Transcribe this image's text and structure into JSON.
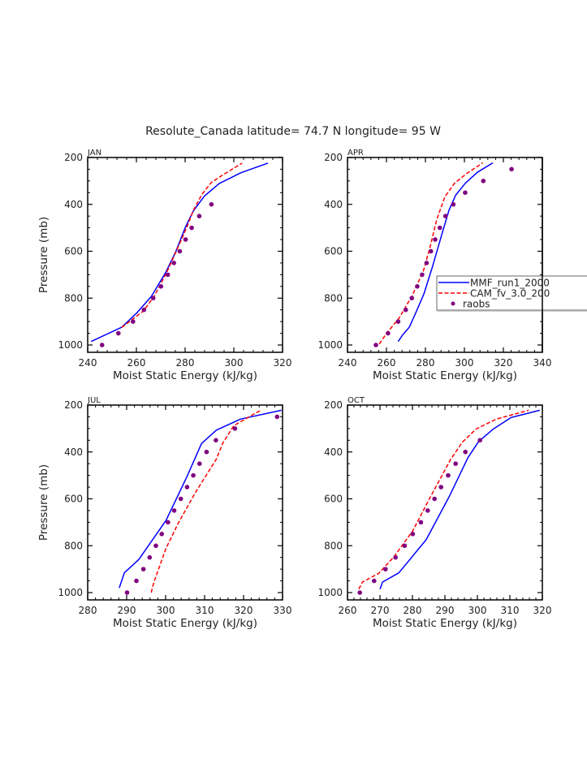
{
  "figure": {
    "title": "Resolute_Canada  latitude= 74.7 N longitude= 95 W"
  },
  "chart_data": {
    "type": "line",
    "title": "Resolute_Canada  latitude= 74.7 N longitude= 95 W",
    "xlabel": "Moist Static Energy (kJ/kg)",
    "ylabel": "Pressure (mb)",
    "y_axis_inverted": true,
    "legend": {
      "placement": "right-middle of APR panel (clipped at figure edge)",
      "entries": [
        {
          "label": "MMF_run1_2000",
          "style": "solid",
          "color": "#0000ff"
        },
        {
          "label": "CAM_fv_3.0_200",
          "style": "dashed",
          "color": "#ff0000"
        },
        {
          "label": "raobs",
          "style": "marker",
          "color": "#800080"
        }
      ]
    },
    "panels": [
      {
        "label": "JAN",
        "xlim": [
          240,
          320
        ],
        "ylim": [
          1000,
          200
        ],
        "xticks": [
          240,
          260,
          280,
          300,
          320
        ],
        "yticks": [
          200,
          400,
          600,
          800,
          1000
        ],
        "show_ylabel": true,
        "series": [
          {
            "name": "MMF_run1_2000",
            "style": "solid",
            "color": "#0000ff",
            "points": [
              [
                241.4,
                985
              ],
              [
                254,
                924
              ],
              [
                260.1,
                864
              ],
              [
                266.2,
                792
              ],
              [
                272,
                691
              ],
              [
                276.2,
                601
              ],
              [
                280.1,
                498
              ],
              [
                283.4,
                428
              ],
              [
                287.9,
                365
              ],
              [
                294,
                311
              ],
              [
                302.9,
                265
              ],
              [
                314,
                224
              ]
            ]
          },
          {
            "name": "CAM_fv_3.0_200",
            "style": "dashed",
            "color": "#ff0000",
            "points": [
              [
                254,
                925
              ],
              [
                262.9,
                855
              ],
              [
                267.3,
                792
              ],
              [
                272.3,
                694
              ],
              [
                276.8,
                590
              ],
              [
                280.7,
                498
              ],
              [
                283.3,
                428
              ],
              [
                286.8,
                359
              ],
              [
                290.7,
                307
              ],
              [
                295.7,
                273
              ],
              [
                303.4,
                224
              ]
            ]
          },
          {
            "name": "raobs",
            "style": "marker",
            "color": "#800080",
            "points": [
              [
                245.9,
                1000
              ],
              [
                252.6,
                950
              ],
              [
                258.6,
                900
              ],
              [
                263.1,
                850
              ],
              [
                266.9,
                800
              ],
              [
                270.1,
                750
              ],
              [
                272.9,
                700
              ],
              [
                275.4,
                650
              ],
              [
                277.8,
                600
              ],
              [
                280.2,
                550
              ],
              [
                282.7,
                500
              ],
              [
                285.8,
                450
              ],
              [
                290.8,
                400
              ]
            ]
          }
        ]
      },
      {
        "label": "APR",
        "xlim": [
          240,
          340
        ],
        "ylim": [
          1000,
          200
        ],
        "xticks": [
          240,
          260,
          280,
          300,
          320,
          340
        ],
        "yticks": [
          200,
          400,
          600,
          800,
          1000
        ],
        "show_ylabel": false,
        "series": [
          {
            "name": "MMF_run1_2000",
            "style": "solid",
            "color": "#0000ff",
            "points": [
              [
                266,
                985
              ],
              [
                268.5,
                955
              ],
              [
                271.7,
                924
              ],
              [
                274.7,
                869
              ],
              [
                279.2,
                782
              ],
              [
                283.8,
                661
              ],
              [
                288.6,
                523
              ],
              [
                292.1,
                425
              ],
              [
                295.5,
                361
              ],
              [
                300.4,
                310
              ],
              [
                306.7,
                263
              ],
              [
                314.6,
                223
              ]
            ]
          },
          {
            "name": "CAM_fv_3.0_200",
            "style": "dashed",
            "color": "#ff0000",
            "points": [
              [
                256.3,
                996
              ],
              [
                260.1,
                950
              ],
              [
                266.4,
                886
              ],
              [
                273.3,
                788
              ],
              [
                278.9,
                685
              ],
              [
                282.4,
                581
              ],
              [
                285.8,
                465
              ],
              [
                290,
                367
              ],
              [
                294.9,
                310
              ],
              [
                301.1,
                269
              ],
              [
                309.4,
                223
              ]
            ]
          },
          {
            "name": "raobs",
            "style": "marker",
            "color": "#800080",
            "points": [
              [
                254.6,
                1000
              ],
              [
                260.8,
                950
              ],
              [
                266,
                900
              ],
              [
                269.9,
                850
              ],
              [
                273,
                800
              ],
              [
                275.8,
                750
              ],
              [
                278.3,
                700
              ],
              [
                280.6,
                650
              ],
              [
                282.8,
                600
              ],
              [
                285,
                550
              ],
              [
                287.4,
                500
              ],
              [
                290.3,
                450
              ],
              [
                294.3,
                400
              ],
              [
                300.4,
                350
              ],
              [
                309.7,
                300
              ],
              [
                324.2,
                250
              ]
            ]
          }
        ]
      },
      {
        "label": "JUL",
        "xlim": [
          280,
          330
        ],
        "ylim": [
          1000,
          200
        ],
        "xticks": [
          280,
          290,
          300,
          310,
          320,
          330
        ],
        "yticks": [
          200,
          400,
          600,
          800,
          1000
        ],
        "show_ylabel": true,
        "series": [
          {
            "name": "MMF_run1_2000",
            "style": "solid",
            "color": "#0000ff",
            "points": [
              [
                288.1,
                980
              ],
              [
                289.4,
                916
              ],
              [
                293.1,
                859
              ],
              [
                300.1,
                692
              ],
              [
                305.4,
                508
              ],
              [
                309.2,
                364
              ],
              [
                313,
                307
              ],
              [
                319.2,
                260
              ],
              [
                329.7,
                222
              ]
            ]
          },
          {
            "name": "CAM_fv_3.0_200",
            "style": "dashed",
            "color": "#ff0000",
            "points": [
              [
                296.3,
                1000
              ],
              [
                297,
                955
              ],
              [
                300.1,
                811
              ],
              [
                303.3,
                702
              ],
              [
                307.8,
                569
              ],
              [
                313,
                431
              ],
              [
                314.7,
                361
              ],
              [
                317.5,
                288
              ],
              [
                321,
                254
              ],
              [
                324.4,
                222
              ]
            ]
          },
          {
            "name": "raobs",
            "style": "marker",
            "color": "#800080",
            "points": [
              [
                290.1,
                1000
              ],
              [
                292.5,
                950
              ],
              [
                294.3,
                900
              ],
              [
                295.9,
                850
              ],
              [
                297.5,
                800
              ],
              [
                299,
                750
              ],
              [
                300.6,
                700
              ],
              [
                302.2,
                650
              ],
              [
                303.9,
                600
              ],
              [
                305.5,
                550
              ],
              [
                307.1,
                500
              ],
              [
                308.7,
                450
              ],
              [
                310.5,
                400
              ],
              [
                312.9,
                350
              ],
              [
                317.8,
                300
              ],
              [
                328.6,
                250
              ]
            ]
          }
        ]
      },
      {
        "label": "OCT",
        "xlim": [
          260,
          320
        ],
        "ylim": [
          1000,
          200
        ],
        "xticks": [
          260,
          270,
          280,
          290,
          300,
          310,
          320
        ],
        "yticks": [
          200,
          400,
          600,
          800,
          1000
        ],
        "show_ylabel": false,
        "series": [
          {
            "name": "MMF_run1_2000",
            "style": "solid",
            "color": "#0000ff",
            "points": [
              [
                270,
                985
              ],
              [
                270.8,
                955
              ],
              [
                275.8,
                916
              ],
              [
                284.2,
                775
              ],
              [
                291.3,
                591
              ],
              [
                297.1,
                424
              ],
              [
                300.4,
                355
              ],
              [
                305,
                301
              ],
              [
                310.4,
                253
              ],
              [
                319.2,
                222
              ]
            ]
          },
          {
            "name": "CAM_fv_3.0_200",
            "style": "dashed",
            "color": "#ff0000",
            "points": [
              [
                263.5,
                985
              ],
              [
                264.6,
                955
              ],
              [
                269.6,
                918
              ],
              [
                274.2,
                849
              ],
              [
                280,
                739
              ],
              [
                285,
                606
              ],
              [
                291.7,
                433
              ],
              [
                295.4,
                358
              ],
              [
                299.6,
                302
              ],
              [
                305.8,
                260
              ],
              [
                315.8,
                222
              ]
            ]
          },
          {
            "name": "raobs",
            "style": "marker",
            "color": "#800080",
            "points": [
              [
                263.8,
                1000
              ],
              [
                268.2,
                950
              ],
              [
                271.7,
                900
              ],
              [
                274.8,
                850
              ],
              [
                277.6,
                800
              ],
              [
                280.1,
                750
              ],
              [
                282.6,
                700
              ],
              [
                284.7,
                650
              ],
              [
                286.8,
                600
              ],
              [
                288.8,
                550
              ],
              [
                291,
                500
              ],
              [
                293.3,
                450
              ],
              [
                296.3,
                400
              ],
              [
                300.8,
                350
              ]
            ]
          }
        ]
      }
    ]
  }
}
